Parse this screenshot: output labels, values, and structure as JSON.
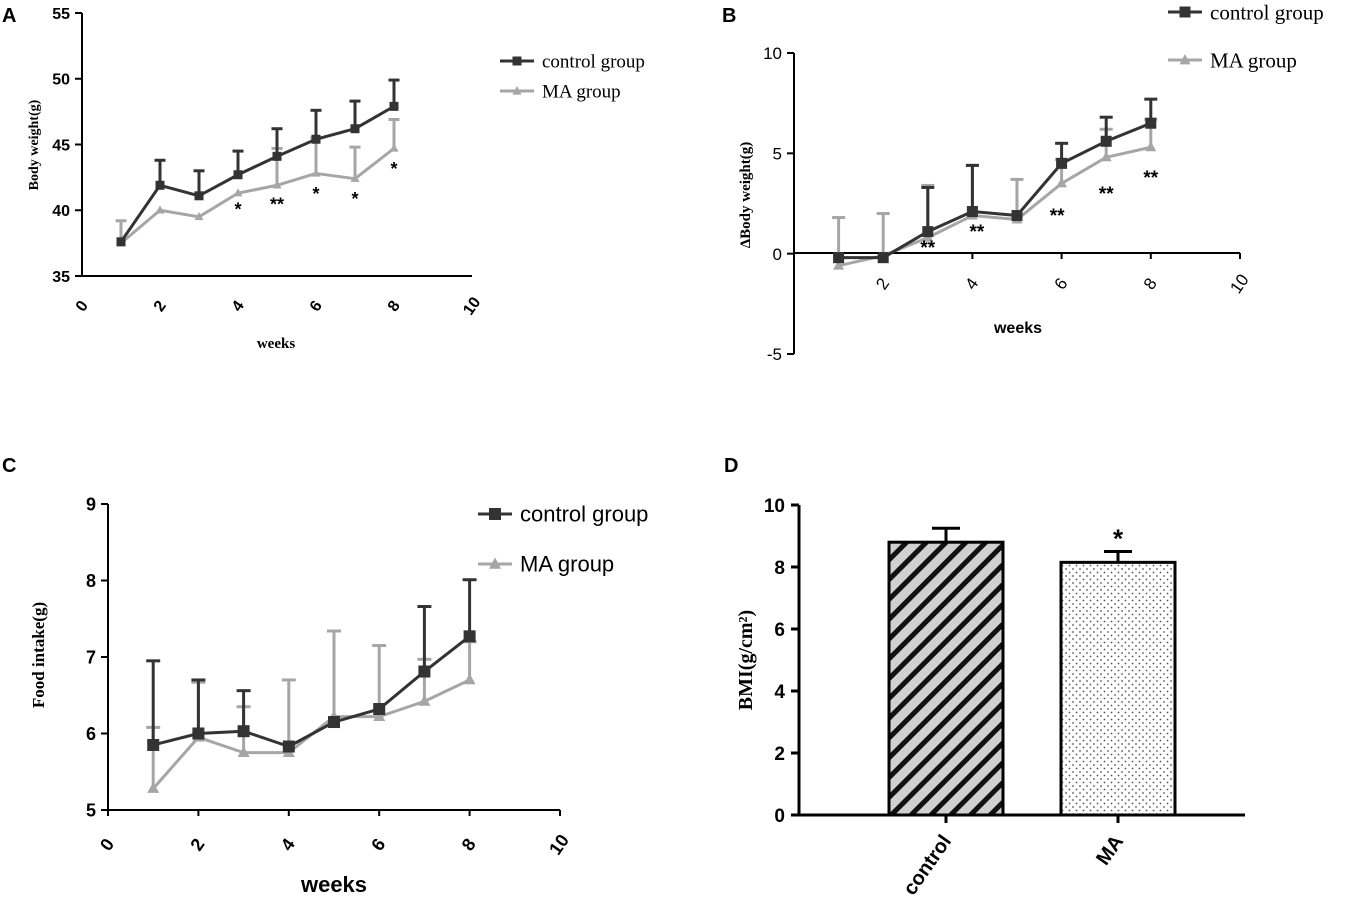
{
  "colors": {
    "control": "#333333",
    "ma": "#a6a6a6",
    "axis": "#000000"
  },
  "chart_data": [
    {
      "panel": "A",
      "type": "line",
      "title": "",
      "xlabel": "weeks",
      "ylabel": "Body weight(g)",
      "xlim": [
        0,
        10
      ],
      "ylim": [
        35,
        55
      ],
      "xticks": [
        "0",
        "2",
        "4",
        "6",
        "8",
        "10"
      ],
      "yticks": [
        "35",
        "40",
        "45",
        "50",
        "55"
      ],
      "legend_position": "top-right",
      "x": [
        1,
        2,
        3,
        4,
        5,
        6,
        7,
        8
      ],
      "series": [
        {
          "name": "control group",
          "values": [
            37.6,
            41.9,
            41.1,
            42.7,
            44.1,
            45.4,
            46.2,
            47.9
          ],
          "err": [
            0.0,
            1.9,
            1.9,
            1.8,
            2.1,
            2.2,
            2.1,
            2.0
          ]
        },
        {
          "name": "MA group",
          "values": [
            37.5,
            40.0,
            39.5,
            41.3,
            41.9,
            42.8,
            42.4,
            44.7
          ],
          "err": [
            1.7,
            0.0,
            0.0,
            0.0,
            2.8,
            2.7,
            2.4,
            2.2
          ]
        }
      ],
      "annotations": [
        {
          "x": 4,
          "y": 40.2,
          "text": "*"
        },
        {
          "x": 5,
          "y": 40.6,
          "text": "**"
        },
        {
          "x": 6,
          "y": 41.4,
          "text": "*"
        },
        {
          "x": 7,
          "y": 41.0,
          "text": "*"
        },
        {
          "x": 8,
          "y": 43.3,
          "text": "*"
        }
      ]
    },
    {
      "panel": "B",
      "type": "line",
      "title": "",
      "xlabel": "weeks",
      "ylabel": "ΔBody weight(g)",
      "xlim": [
        0,
        10
      ],
      "ylim": [
        -5,
        10
      ],
      "xticks": [
        "2",
        "4",
        "6",
        "8",
        "10"
      ],
      "yticks": [
        "-5",
        "0",
        "5",
        "10"
      ],
      "legend_position": "top-right",
      "x": [
        1,
        2,
        3,
        4,
        5,
        6,
        7,
        8
      ],
      "series": [
        {
          "name": "control group",
          "values": [
            -0.2,
            -0.2,
            1.1,
            2.1,
            1.9,
            4.5,
            5.6,
            6.5
          ],
          "err": [
            0.0,
            0.0,
            2.2,
            2.3,
            0.0,
            1.0,
            1.2,
            1.2
          ]
        },
        {
          "name": "MA group",
          "values": [
            -0.6,
            -0.1,
            0.8,
            1.9,
            1.7,
            3.5,
            4.8,
            5.3
          ],
          "err": [
            2.4,
            2.1,
            2.6,
            2.5,
            2.0,
            1.2,
            1.4,
            1.4
          ]
        }
      ],
      "annotations": [
        {
          "x": 3,
          "y": 0.4,
          "text": "**"
        },
        {
          "x": 4.1,
          "y": 1.2,
          "text": "**"
        },
        {
          "x": 5.9,
          "y": 2.0,
          "text": "**"
        },
        {
          "x": 7,
          "y": 3.1,
          "text": "**"
        },
        {
          "x": 8,
          "y": 3.9,
          "text": "**"
        }
      ]
    },
    {
      "panel": "C",
      "type": "line",
      "title": "",
      "xlabel": "weeks",
      "ylabel": "Food intake(g)",
      "xlim": [
        0,
        10
      ],
      "ylim": [
        5,
        9
      ],
      "xticks": [
        "0",
        "2",
        "4",
        "6",
        "8",
        "10"
      ],
      "yticks": [
        "5",
        "6",
        "7",
        "8",
        "9"
      ],
      "legend_position": "top-right",
      "x": [
        1,
        2,
        3,
        4,
        5,
        6,
        7,
        8
      ],
      "series": [
        {
          "name": "control group",
          "values": [
            5.85,
            6.0,
            6.03,
            5.83,
            6.15,
            6.32,
            6.81,
            7.27
          ],
          "err": [
            1.1,
            0.7,
            0.53,
            0.0,
            0.0,
            0.0,
            0.85,
            0.74
          ]
        },
        {
          "name": "MA group",
          "values": [
            5.28,
            5.95,
            5.75,
            5.75,
            6.22,
            6.22,
            6.42,
            6.7
          ],
          "err": [
            0.8,
            0.72,
            0.6,
            0.95,
            1.12,
            0.93,
            0.55,
            0.5
          ]
        }
      ]
    },
    {
      "panel": "D",
      "type": "bar",
      "title": "",
      "xlabel": "",
      "ylabel": "BMI(g/cm²)",
      "ylim": [
        0,
        10
      ],
      "yticks": [
        "0",
        "2",
        "4",
        "6",
        "8",
        "10"
      ],
      "categories": [
        "control",
        "MA"
      ],
      "values": [
        8.8,
        8.15
      ],
      "err": [
        0.45,
        0.35
      ],
      "fills": [
        "diagonal-hatch",
        "dots"
      ],
      "annotations": [
        {
          "category": "MA",
          "text": "*"
        }
      ]
    }
  ]
}
